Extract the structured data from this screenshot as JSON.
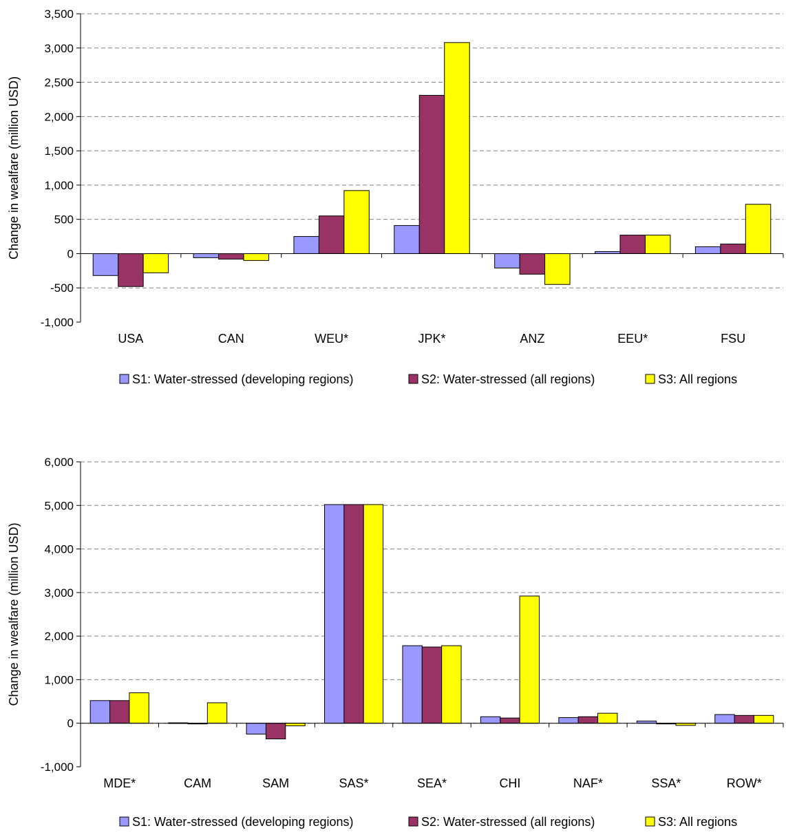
{
  "chart_data": [
    {
      "type": "bar",
      "ylabel": "Change in wealfare (million USD)",
      "ylim": [
        -1000,
        3500
      ],
      "ytick_step": 500,
      "grid": true,
      "legend_position": "bottom",
      "categories": [
        "USA",
        "CAN",
        "WEU*",
        "JPK*",
        "ANZ",
        "EEU*",
        "FSU"
      ],
      "series": [
        {
          "name": "S1: Water-stressed (developing regions)",
          "color": "#9999ff",
          "values": [
            -320,
            -60,
            250,
            410,
            -210,
            30,
            100
          ]
        },
        {
          "name": "S2: Water-stressed (all regions)",
          "color": "#993366",
          "values": [
            -480,
            -80,
            550,
            2310,
            -300,
            270,
            140
          ]
        },
        {
          "name": "S3: All regions",
          "color": "#ffff00",
          "values": [
            -280,
            -100,
            920,
            3080,
            -450,
            270,
            720
          ]
        }
      ]
    },
    {
      "type": "bar",
      "ylabel": "Change in wealfare (million USD)",
      "ylim": [
        -1000,
        6000
      ],
      "ytick_step": 1000,
      "grid": true,
      "legend_position": "bottom",
      "categories": [
        "MDE*",
        "CAM",
        "SAM",
        "SAS*",
        "SEA*",
        "CHI",
        "NAF*",
        "SSA*",
        "ROW*"
      ],
      "series": [
        {
          "name": "S1: Water-stressed (developing regions)",
          "color": "#9999ff",
          "values": [
            520,
            10,
            -250,
            5020,
            1780,
            150,
            130,
            50,
            200
          ]
        },
        {
          "name": "S2: Water-stressed (all regions)",
          "color": "#993366",
          "values": [
            520,
            0,
            -360,
            5020,
            1750,
            120,
            150,
            0,
            180
          ]
        },
        {
          "name": "S3: All regions",
          "color": "#ffff00",
          "values": [
            700,
            470,
            -60,
            5020,
            1780,
            2920,
            230,
            -50,
            180
          ]
        }
      ]
    }
  ]
}
